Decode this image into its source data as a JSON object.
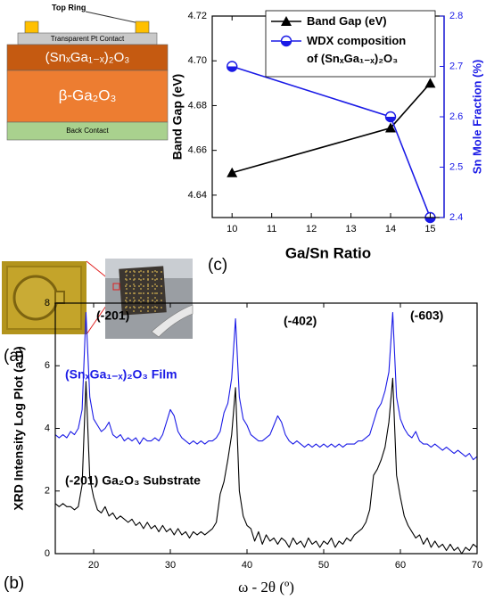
{
  "panel_a": {
    "top_ring": "Top Ring",
    "contact": "Transparent Pt Contact",
    "film": "(SnₓGa₁₋ₓ)₂O₃",
    "substrate": "β-Ga₂O₃",
    "back_contact": "Back Contact",
    "label": "(a)"
  },
  "chart_data": [
    {
      "type": "line",
      "panel_label": "(c)",
      "xlabel": "Ga/Sn Ratio",
      "ylabel": "Band Gap (eV)",
      "y2label": "Sn Mole Fraction (%)",
      "y2color": "#1a1ae6",
      "x": [
        10,
        14,
        15
      ],
      "series": [
        {
          "name": "Band Gap (eV)",
          "color": "#000000",
          "marker": "triangle",
          "values": [
            4.65,
            4.67,
            4.69
          ]
        },
        {
          "name": "WDX composition of (SnₓGa₁₋ₓ)₂O₃",
          "color": "#1a1ae6",
          "marker": "half-circle",
          "axis": "y2",
          "values": [
            2.7,
            2.6,
            2.4
          ]
        }
      ],
      "xlim": [
        9.5,
        15.35
      ],
      "xticks": [
        10,
        11,
        12,
        13,
        14,
        15
      ],
      "ylim": [
        4.63,
        4.72
      ],
      "yticks": [
        4.64,
        4.66,
        4.68,
        {
          "value": 4.7,
          "label": "4.70"
        },
        4.72
      ],
      "y2lim": [
        2.4,
        2.8
      ],
      "y2ticks": [
        2.4,
        2.5,
        2.6,
        2.7,
        2.8
      ],
      "legend": true,
      "legend_loc": "upper right"
    },
    {
      "type": "line",
      "panel_label": "(b)",
      "xlabel": "ω - 2θ (º)",
      "ylabel": "XRD Intensity Log Plot (a.u)",
      "x": [
        15,
        15.5,
        16,
        16.5,
        17,
        17.5,
        18,
        18.5,
        19,
        19.5,
        20,
        20.5,
        21,
        21.5,
        22,
        22.5,
        23,
        23.5,
        24,
        24.5,
        25,
        25.5,
        26,
        26.5,
        27,
        27.5,
        28,
        28.5,
        29,
        29.5,
        30,
        30.5,
        31,
        31.5,
        32,
        32.5,
        33,
        33.5,
        34,
        34.5,
        35,
        35.5,
        36,
        36.5,
        37,
        37.5,
        38,
        38.5,
        39,
        39.5,
        40,
        40.5,
        41,
        41.5,
        42,
        42.5,
        43,
        43.5,
        44,
        44.5,
        45,
        45.5,
        46,
        46.5,
        47,
        47.5,
        48,
        48.5,
        49,
        49.5,
        50,
        50.5,
        51,
        51.5,
        52,
        52.5,
        53,
        53.5,
        54,
        54.5,
        55,
        55.5,
        56,
        56.5,
        57,
        57.5,
        58,
        58.5,
        59,
        59.5,
        60,
        60.5,
        61,
        61.5,
        62,
        62.5,
        63,
        63.5,
        64,
        64.5,
        65,
        65.5,
        66,
        66.5,
        67,
        67.5,
        68,
        68.5,
        69,
        69.5,
        70
      ],
      "series": [
        {
          "name": "(SnₓGa₁₋ₓ)₂O₃ Film",
          "color": "#1a1ae6",
          "values": [
            3.8,
            3.7,
            3.8,
            3.7,
            3.9,
            3.8,
            4.0,
            4.6,
            7.7,
            5.0,
            4.3,
            4.1,
            3.9,
            4.0,
            4.2,
            3.8,
            3.7,
            3.8,
            3.6,
            3.7,
            3.6,
            3.7,
            3.5,
            3.7,
            3.6,
            3.6,
            3.7,
            3.6,
            3.8,
            4.2,
            4.6,
            4.4,
            3.9,
            3.7,
            3.6,
            3.5,
            3.6,
            3.5,
            3.6,
            3.5,
            3.6,
            3.6,
            3.7,
            3.9,
            4.5,
            4.8,
            5.6,
            7.5,
            5.0,
            4.3,
            4.1,
            3.8,
            3.7,
            3.6,
            3.6,
            3.7,
            3.8,
            4.1,
            4.4,
            4.2,
            3.8,
            3.6,
            3.5,
            3.6,
            3.5,
            3.4,
            3.5,
            3.4,
            3.5,
            3.4,
            3.5,
            3.4,
            3.5,
            3.4,
            3.5,
            3.4,
            3.5,
            3.5,
            3.5,
            3.6,
            3.6,
            3.7,
            3.8,
            4.2,
            4.6,
            4.8,
            5.2,
            5.8,
            7.7,
            5.0,
            4.3,
            4.0,
            3.8,
            3.7,
            3.9,
            3.6,
            3.5,
            3.5,
            3.4,
            3.5,
            3.4,
            3.3,
            3.4,
            3.3,
            3.2,
            3.3,
            3.2,
            3.1,
            3.2,
            3.0,
            3.1
          ]
        },
        {
          "name": "(-201) Ga₂O₃ Substrate",
          "color": "#000000",
          "values": [
            1.6,
            1.5,
            1.6,
            1.5,
            1.5,
            1.4,
            1.5,
            2.2,
            5.5,
            2.4,
            1.8,
            1.4,
            1.3,
            1.5,
            1.2,
            1.3,
            1.1,
            1.2,
            1.1,
            1.0,
            1.1,
            0.9,
            1.0,
            0.8,
            1.0,
            0.8,
            0.9,
            0.7,
            0.9,
            0.7,
            0.8,
            0.6,
            0.8,
            0.6,
            0.7,
            0.5,
            0.7,
            0.6,
            0.7,
            0.6,
            0.7,
            0.8,
            1.0,
            1.9,
            2.3,
            3.0,
            3.8,
            5.3,
            2.0,
            1.2,
            0.9,
            0.8,
            0.4,
            0.7,
            0.3,
            0.6,
            0.4,
            0.5,
            0.3,
            0.5,
            0.4,
            0.2,
            0.5,
            0.3,
            0.4,
            0.2,
            0.5,
            0.3,
            0.4,
            0.2,
            0.4,
            0.3,
            0.5,
            0.2,
            0.4,
            0.3,
            0.5,
            0.4,
            0.6,
            0.7,
            0.8,
            1.0,
            1.4,
            2.5,
            2.7,
            3.0,
            3.4,
            4.2,
            5.6,
            2.5,
            1.8,
            1.2,
            0.9,
            0.7,
            0.5,
            0.6,
            0.3,
            0.5,
            0.2,
            0.4,
            0.2,
            0.3,
            0.1,
            0.3,
            0.1,
            0.2,
            0.0,
            0.2,
            0.1,
            0.3,
            0.2
          ]
        }
      ],
      "annotations": [
        {
          "text": "(-201)",
          "color": "#000000"
        },
        {
          "text": "(-402)",
          "color": "#000000"
        },
        {
          "text": "(-603)",
          "color": "#000000"
        }
      ],
      "xlim": [
        15,
        70
      ],
      "xticks": [
        20,
        30,
        40,
        50,
        60,
        70
      ],
      "ylim": [
        0,
        8
      ],
      "yticks": [
        0,
        2,
        4,
        6,
        8
      ],
      "legend": false
    }
  ]
}
